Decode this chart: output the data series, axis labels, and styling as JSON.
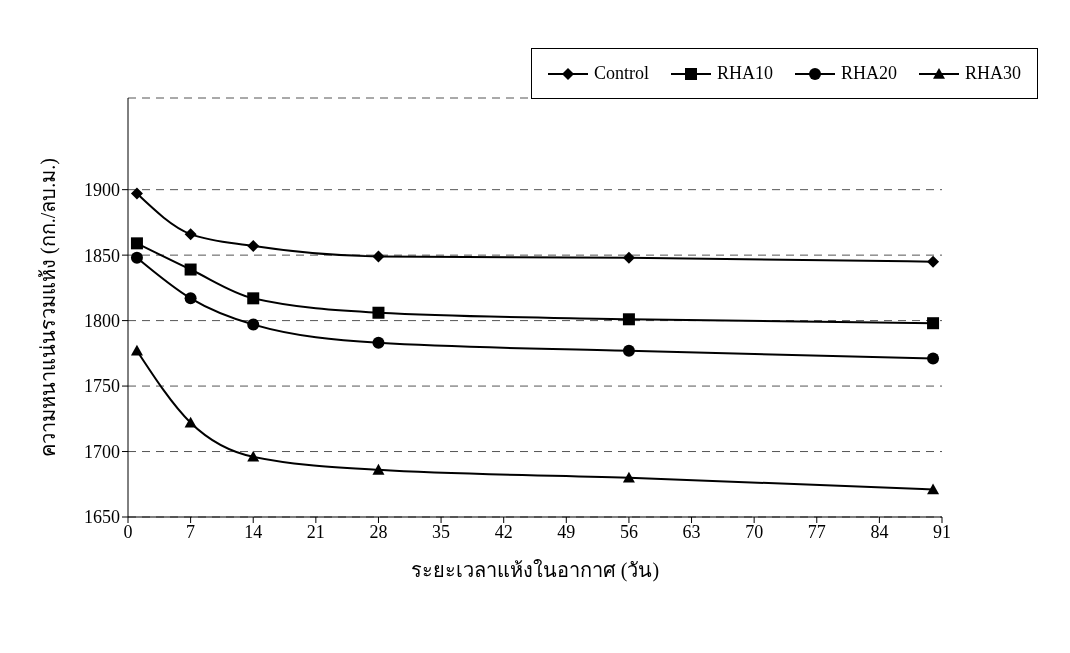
{
  "chart_data": {
    "type": "line",
    "xlabel": "ระยะเวลาแห้งในอากาศ (วัน)",
    "ylabel": "ความหนาแน่นรวมแห้ง (กก./ลบ.ม.)",
    "x": [
      1,
      7,
      14,
      28,
      56,
      90
    ],
    "xlim": [
      0,
      91
    ],
    "xticks": [
      0,
      7,
      14,
      21,
      28,
      35,
      42,
      49,
      56,
      63,
      70,
      77,
      84,
      91
    ],
    "ylim": [
      1650,
      1970
    ],
    "yticks": [
      1650,
      1700,
      1750,
      1800,
      1850,
      1900
    ],
    "grid": "y",
    "legend": "top right",
    "line_style": "solid",
    "series": [
      {
        "name": "Control",
        "color": "#000000",
        "marker": "diamond",
        "values": [
          1897,
          1866,
          1857,
          1849,
          1848,
          1845
        ]
      },
      {
        "name": "RHA10",
        "color": "#000000",
        "marker": "square",
        "values": [
          1859,
          1839,
          1817,
          1806,
          1801,
          1798
        ]
      },
      {
        "name": "RHA20",
        "color": "#000000",
        "marker": "circle",
        "values": [
          1848,
          1817,
          1797,
          1783,
          1777,
          1771
        ]
      },
      {
        "name": "RHA30",
        "color": "#000000",
        "marker": "triangle",
        "values": [
          1777,
          1722,
          1696,
          1686,
          1680,
          1671
        ]
      }
    ]
  }
}
